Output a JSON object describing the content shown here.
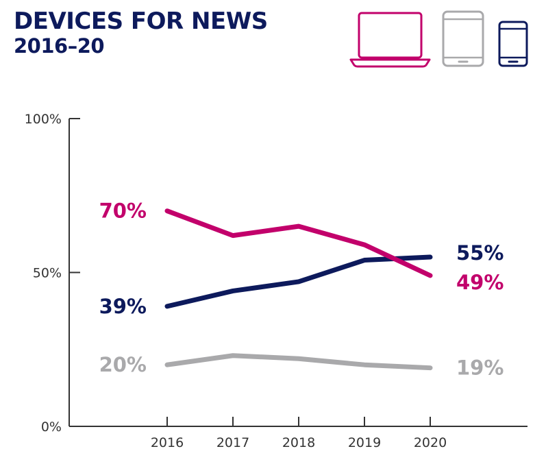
{
  "header": {
    "title": "DEVICES FOR NEWS",
    "subtitle": "2016–20"
  },
  "device_icons": [
    {
      "name": "laptop-icon",
      "color": "#c2006b"
    },
    {
      "name": "tablet-icon",
      "color": "#a9a9ab"
    },
    {
      "name": "smartphone-icon",
      "color": "#0d1a5c"
    }
  ],
  "chart_data": {
    "type": "line",
    "title": "DEVICES FOR NEWS",
    "subtitle": "2016–20",
    "x": [
      "2016",
      "2017",
      "2018",
      "2019",
      "2020"
    ],
    "ylim": [
      0,
      100
    ],
    "y_ticks": [
      "0%",
      "50%",
      "100%"
    ],
    "y_tick_values": [
      0,
      50,
      100
    ],
    "grid": false,
    "series": [
      {
        "key": "computer",
        "color": "#c2006b",
        "values": [
          70,
          62,
          65,
          59,
          49
        ],
        "start_label": "70%",
        "end_label": "49%"
      },
      {
        "key": "smartphone",
        "color": "#0d1a5c",
        "values": [
          39,
          44,
          47,
          54,
          55
        ],
        "start_label": "39%",
        "end_label": "55%"
      },
      {
        "key": "tablet",
        "color": "#a9a9ab",
        "values": [
          20,
          23,
          22,
          20,
          19
        ],
        "start_label": "20%",
        "end_label": "19%"
      }
    ]
  }
}
